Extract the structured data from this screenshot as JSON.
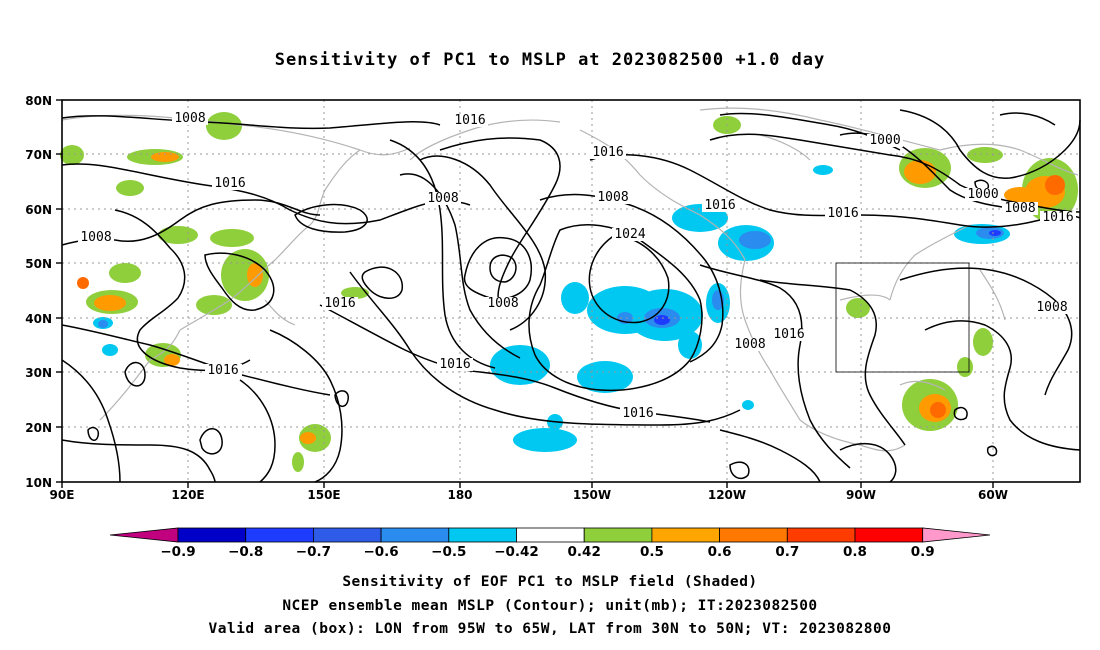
{
  "title": "Sensitivity of PC1 to MSLP at 2023082500 +1.0 day",
  "axes": {
    "y_ticks": [
      "80N",
      "70N",
      "60N",
      "50N",
      "40N",
      "30N",
      "20N",
      "10N"
    ],
    "x_ticks": [
      "90E",
      "120E",
      "150E",
      "180",
      "150W",
      "120W",
      "90W",
      "60W"
    ]
  },
  "contour_labels": [
    "1008",
    "1016",
    "1008",
    "1016",
    "1008",
    "1016",
    "1008",
    "1016",
    "1008",
    "1016",
    "1024",
    "1008",
    "1016",
    "1016",
    "1008",
    "1000",
    "1000",
    "1008",
    "1016",
    "1016",
    "1016",
    "1008",
    "1016"
  ],
  "colorbar": {
    "labels": [
      "-0.9",
      "-0.8",
      "-0.7",
      "-0.6",
      "-0.5",
      "-0.42",
      "0.42",
      "0.5",
      "0.6",
      "0.7",
      "0.8",
      "0.9"
    ],
    "colors": [
      "#c0007f",
      "#0000c8",
      "#1e3cff",
      "#2e5ce8",
      "#2b8cf0",
      "#00c8f0",
      "#ffffff",
      "#8fcf3c",
      "#ffa500",
      "#ff7800",
      "#ff3c00",
      "#ff0000",
      "#ff99cc"
    ]
  },
  "footnotes": [
    "Sensitivity of EOF PC1 to MSLP field (Shaded)",
    "NCEP ensemble mean MSLP (Contour); unit(mb); IT:2023082500",
    "Valid area (box): LON from 95W to 65W, LAT from 30N to 50N; VT: 2023082800"
  ]
}
